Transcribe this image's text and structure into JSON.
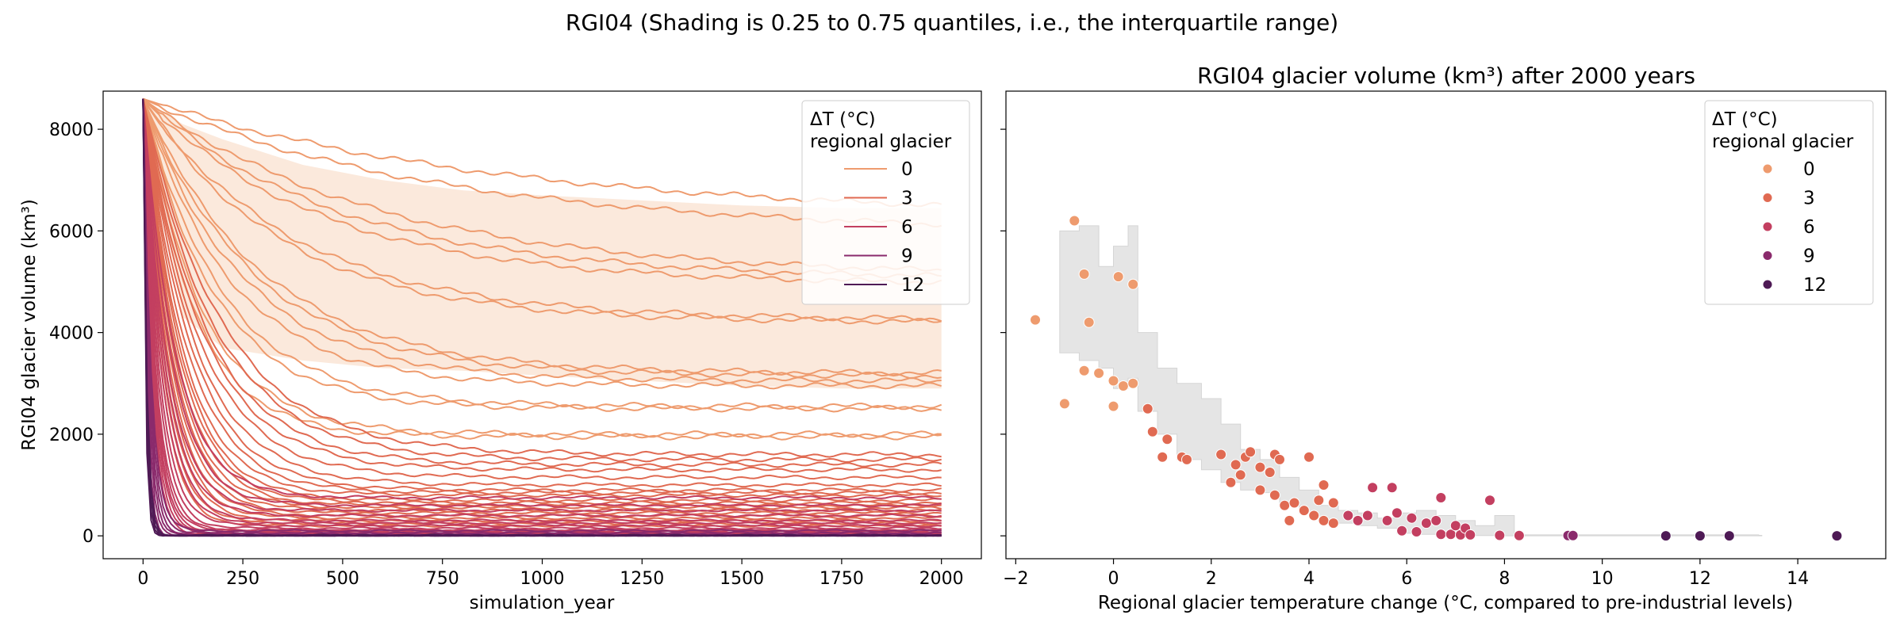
{
  "suptitle": "RGI04 (Shading is 0.25 to 0.75 quantiles, i.e., the interquartile range)",
  "colors": {
    "dT0": "#ee9b6e",
    "dT3": "#e06a52",
    "dT6": "#c33f60",
    "dT9": "#8a2a6c",
    "dT12": "#4e1a55",
    "band_left": "#fbe9dc",
    "band_right": "#e5e5e5"
  },
  "chart_data": [
    {
      "type": "line",
      "title": "",
      "xlabel": "simulation_year",
      "ylabel": "RGI04 glacier volume (km³)",
      "xlim": [
        -100,
        2100
      ],
      "ylim": [
        -450,
        8750
      ],
      "xticks": [
        0,
        250,
        500,
        750,
        1000,
        1250,
        1500,
        1750,
        2000
      ],
      "yticks": [
        0,
        2000,
        4000,
        6000,
        8000
      ],
      "legend": {
        "title_line1": "ΔT (°C)",
        "title_line2": "regional glacier",
        "placement": "top-right",
        "entries": [
          "0",
          "3",
          "6",
          "9",
          "12"
        ]
      },
      "initial_volume": 8600,
      "iqr_band": [
        {
          "x": 0,
          "lo": 8600,
          "hi": 8600
        },
        {
          "x": 100,
          "lo": 4300,
          "hi": 8100
        },
        {
          "x": 200,
          "lo": 3700,
          "hi": 7800
        },
        {
          "x": 400,
          "lo": 3450,
          "hi": 7300
        },
        {
          "x": 600,
          "lo": 3300,
          "hi": 7000
        },
        {
          "x": 800,
          "lo": 3250,
          "hi": 6800
        },
        {
          "x": 1000,
          "lo": 3150,
          "hi": 6700
        },
        {
          "x": 1250,
          "lo": 3050,
          "hi": 6600
        },
        {
          "x": 1500,
          "lo": 2950,
          "hi": 6500
        },
        {
          "x": 1750,
          "lo": 2900,
          "hi": 6450
        },
        {
          "x": 2000,
          "lo": 2900,
          "hi": 6450
        }
      ],
      "series_by_dT_level": [
        {
          "level": "0",
          "final_volumes": [
            6250,
            5950,
            5100,
            5050,
            4950,
            4250,
            4200,
            3200,
            3150,
            3050,
            2950,
            2550,
            2500,
            2000,
            1950
          ],
          "decay_years": [
            900,
            750,
            600,
            500,
            450,
            380,
            350,
            300,
            280,
            250,
            220,
            200,
            180,
            150,
            130
          ]
        },
        {
          "level": "3",
          "final_volumes": [
            1600,
            1500,
            1400,
            1300,
            1150,
            1000,
            900,
            850,
            800,
            700,
            650,
            600,
            550,
            500,
            450,
            400,
            350,
            300,
            250,
            200
          ],
          "decay_years": [
            200,
            180,
            160,
            150,
            140,
            130,
            120,
            110,
            100,
            95,
            90,
            85,
            80,
            75,
            70,
            65,
            60,
            55,
            50,
            45
          ]
        },
        {
          "level": "6",
          "final_volumes": [
            750,
            600,
            500,
            400,
            300,
            250,
            200,
            150,
            120,
            100,
            80,
            60,
            40,
            20
          ],
          "decay_years": [
            80,
            70,
            60,
            55,
            50,
            45,
            40,
            36,
            32,
            30,
            28,
            26,
            24,
            22
          ]
        },
        {
          "level": "9",
          "final_volumes": [
            100,
            60,
            30,
            10,
            5,
            0
          ],
          "decay_years": [
            20,
            18,
            16,
            14,
            12,
            10
          ]
        },
        {
          "level": "12",
          "final_volumes": [
            10,
            5,
            0,
            0
          ],
          "decay_years": [
            9,
            8,
            7,
            6
          ]
        }
      ]
    },
    {
      "type": "scatter",
      "title": "RGI04 glacier volume (km³) after 2000 years",
      "xlabel": "Regional glacier temperature change (°C, compared to pre-industrial levels)",
      "ylabel": "",
      "xlim": [
        -2.2,
        15.8
      ],
      "ylim": [
        -450,
        8750
      ],
      "xticks": [
        -2,
        0,
        2,
        4,
        6,
        8,
        10,
        12,
        14
      ],
      "yticks": [
        0,
        2000,
        4000,
        6000,
        8000
      ],
      "legend": {
        "title_line1": "ΔT (°C)",
        "title_line2": "regional glacier",
        "placement": "top-right",
        "entries": [
          "0",
          "3",
          "6",
          "9",
          "12"
        ]
      },
      "points": [
        {
          "x": -1.6,
          "y": 4250
        },
        {
          "x": -1.0,
          "y": 2600
        },
        {
          "x": -0.8,
          "y": 6200
        },
        {
          "x": -0.6,
          "y": 5150
        },
        {
          "x": -0.5,
          "y": 4200
        },
        {
          "x": -0.6,
          "y": 3250
        },
        {
          "x": -0.3,
          "y": 3200
        },
        {
          "x": 0.1,
          "y": 5100
        },
        {
          "x": 0.4,
          "y": 4950
        },
        {
          "x": 0.0,
          "y": 3050
        },
        {
          "x": 0.2,
          "y": 2950
        },
        {
          "x": 0.4,
          "y": 3000
        },
        {
          "x": 0.0,
          "y": 2550
        },
        {
          "x": 0.7,
          "y": 2500
        },
        {
          "x": 0.8,
          "y": 2050
        },
        {
          "x": 1.1,
          "y": 1900
        },
        {
          "x": 1.0,
          "y": 1550
        },
        {
          "x": 1.4,
          "y": 1550
        },
        {
          "x": 1.5,
          "y": 1500
        },
        {
          "x": 2.2,
          "y": 1600
        },
        {
          "x": 2.5,
          "y": 1400
        },
        {
          "x": 2.6,
          "y": 1200
        },
        {
          "x": 2.7,
          "y": 1550
        },
        {
          "x": 2.8,
          "y": 1650
        },
        {
          "x": 2.4,
          "y": 1050
        },
        {
          "x": 3.0,
          "y": 1350
        },
        {
          "x": 3.2,
          "y": 1250
        },
        {
          "x": 3.3,
          "y": 1600
        },
        {
          "x": 3.4,
          "y": 1500
        },
        {
          "x": 3.0,
          "y": 900
        },
        {
          "x": 3.3,
          "y": 800
        },
        {
          "x": 3.5,
          "y": 600
        },
        {
          "x": 3.6,
          "y": 300
        },
        {
          "x": 3.7,
          "y": 650
        },
        {
          "x": 4.0,
          "y": 1550
        },
        {
          "x": 3.9,
          "y": 500
        },
        {
          "x": 4.1,
          "y": 400
        },
        {
          "x": 4.2,
          "y": 700
        },
        {
          "x": 4.3,
          "y": 1000
        },
        {
          "x": 4.3,
          "y": 300
        },
        {
          "x": 4.5,
          "y": 250
        },
        {
          "x": 4.5,
          "y": 650
        },
        {
          "x": 4.8,
          "y": 400
        },
        {
          "x": 5.0,
          "y": 300
        },
        {
          "x": 5.2,
          "y": 400
        },
        {
          "x": 5.3,
          "y": 950
        },
        {
          "x": 5.6,
          "y": 300
        },
        {
          "x": 5.7,
          "y": 950
        },
        {
          "x": 5.8,
          "y": 450
        },
        {
          "x": 5.9,
          "y": 100
        },
        {
          "x": 6.1,
          "y": 350
        },
        {
          "x": 6.2,
          "y": 80
        },
        {
          "x": 6.4,
          "y": 250
        },
        {
          "x": 6.6,
          "y": 300
        },
        {
          "x": 6.7,
          "y": 750
        },
        {
          "x": 6.7,
          "y": 30
        },
        {
          "x": 6.9,
          "y": 30
        },
        {
          "x": 7.0,
          "y": 200
        },
        {
          "x": 7.1,
          "y": 20
        },
        {
          "x": 7.2,
          "y": 150
        },
        {
          "x": 7.3,
          "y": 20
        },
        {
          "x": 7.7,
          "y": 700
        },
        {
          "x": 7.9,
          "y": 10
        },
        {
          "x": 8.3,
          "y": 5
        },
        {
          "x": 9.3,
          "y": 5
        },
        {
          "x": 9.4,
          "y": 5
        },
        {
          "x": 11.3,
          "y": 0
        },
        {
          "x": 12.0,
          "y": 0
        },
        {
          "x": 12.6,
          "y": 0
        },
        {
          "x": 14.8,
          "y": 0
        }
      ],
      "iqr_band": [
        {
          "x": -1.1,
          "lo": 3600,
          "hi": 6000
        },
        {
          "x": -0.7,
          "lo": 3450,
          "hi": 6100
        },
        {
          "x": -0.3,
          "lo": 3300,
          "hi": 5300
        },
        {
          "x": 0.0,
          "lo": 2900,
          "hi": 5700
        },
        {
          "x": 0.3,
          "lo": 3100,
          "hi": 6100
        },
        {
          "x": 0.5,
          "lo": 2450,
          "hi": 4000
        },
        {
          "x": 0.9,
          "lo": 2000,
          "hi": 3300
        },
        {
          "x": 1.3,
          "lo": 1500,
          "hi": 3000
        },
        {
          "x": 1.8,
          "lo": 1300,
          "hi": 2700
        },
        {
          "x": 2.2,
          "lo": 1050,
          "hi": 2200
        },
        {
          "x": 2.6,
          "lo": 900,
          "hi": 1700
        },
        {
          "x": 3.0,
          "lo": 850,
          "hi": 1500
        },
        {
          "x": 3.4,
          "lo": 600,
          "hi": 1150
        },
        {
          "x": 3.8,
          "lo": 450,
          "hi": 900
        },
        {
          "x": 4.2,
          "lo": 300,
          "hi": 600
        },
        {
          "x": 4.6,
          "lo": 250,
          "hi": 500
        },
        {
          "x": 5.0,
          "lo": 200,
          "hi": 450
        },
        {
          "x": 5.4,
          "lo": 150,
          "hi": 350
        },
        {
          "x": 5.8,
          "lo": 50,
          "hi": 450
        },
        {
          "x": 6.2,
          "lo": 30,
          "hi": 500
        },
        {
          "x": 6.6,
          "lo": 20,
          "hi": 400
        },
        {
          "x": 7.0,
          "lo": 10,
          "hi": 300
        },
        {
          "x": 7.4,
          "lo": 5,
          "hi": 200
        },
        {
          "x": 7.8,
          "lo": 0,
          "hi": 400
        },
        {
          "x": 8.2,
          "lo": 0,
          "hi": 20
        },
        {
          "x": 13.2,
          "lo": 0,
          "hi": 10
        }
      ]
    }
  ]
}
